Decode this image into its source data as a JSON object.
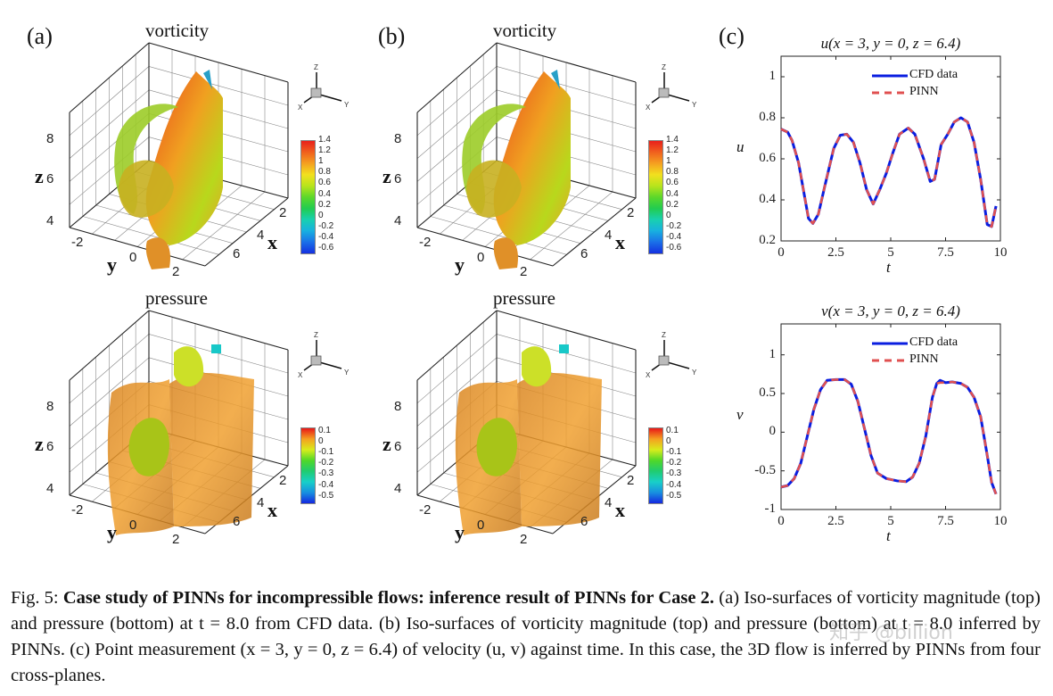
{
  "panels": {
    "a": {
      "label": "(a)",
      "top_title": "vorticity",
      "bottom_title": "pressure"
    },
    "b": {
      "label": "(b)",
      "top_title": "vorticity",
      "bottom_title": "pressure"
    },
    "c": {
      "label": "(c)"
    }
  },
  "axes3d": {
    "z_label": "z",
    "y_label": "y",
    "x_label": "x",
    "z_ticks": [
      "8",
      "6",
      "4"
    ],
    "y_ticks": [
      "-2",
      "0",
      "2"
    ],
    "x_ticks": [
      "2",
      "4",
      "6"
    ],
    "triad": {
      "z": "Z",
      "x": "X",
      "y": "Y"
    }
  },
  "colorbars": {
    "vorticity": {
      "labels": [
        "1.4",
        "1.2",
        "1",
        "0.8",
        "0.6",
        "0.4",
        "0.2",
        "0",
        "-0.2",
        "-0.4",
        "-0.6"
      ],
      "colors": [
        "#e8201c",
        "#f0601e",
        "#f5a020",
        "#f2e01e",
        "#b8e41c",
        "#5cd82a",
        "#22cc50",
        "#18d0b0",
        "#18b0e0",
        "#1a70e8",
        "#1430e0"
      ]
    },
    "pressure": {
      "labels": [
        "0.1",
        "0",
        "-0.1",
        "-0.2",
        "-0.3",
        "-0.4",
        "-0.5"
      ],
      "colors": [
        "#e81818",
        "#f5a020",
        "#d8ec1c",
        "#50d828",
        "#20cc70",
        "#18d0c8",
        "#1890e0",
        "#1428e0"
      ]
    }
  },
  "chart_data": [
    {
      "type": "line",
      "title": "u(x = 3, y = 0, z = 6.4)",
      "xlabel": "t",
      "ylabel": "u",
      "xlim": [
        0,
        10
      ],
      "ylim": [
        0.2,
        1.1
      ],
      "xticks": [
        "0",
        "2.5",
        "5",
        "7.5",
        "10"
      ],
      "yticks": [
        "0.2",
        "0.4",
        "0.6",
        "0.8",
        "1"
      ],
      "legend": "top-right",
      "x": [
        0,
        0.3,
        0.5,
        0.8,
        1.1,
        1.25,
        1.45,
        1.7,
        2.0,
        2.4,
        2.7,
        3.0,
        3.3,
        3.6,
        3.9,
        4.2,
        4.5,
        4.8,
        5.1,
        5.4,
        5.8,
        6.1,
        6.5,
        6.8,
        7.0,
        7.3,
        7.6,
        7.9,
        8.2,
        8.5,
        8.8,
        9.1,
        9.4,
        9.6,
        9.8
      ],
      "series": [
        {
          "name": "CFD data",
          "color": "#0a1ee0",
          "style": "solid",
          "values": [
            0.745,
            0.73,
            0.69,
            0.58,
            0.4,
            0.31,
            0.285,
            0.33,
            0.47,
            0.65,
            0.715,
            0.72,
            0.68,
            0.58,
            0.45,
            0.38,
            0.45,
            0.53,
            0.63,
            0.72,
            0.75,
            0.72,
            0.6,
            0.49,
            0.5,
            0.67,
            0.72,
            0.78,
            0.8,
            0.78,
            0.68,
            0.5,
            0.28,
            0.27,
            0.37
          ]
        },
        {
          "name": "PINN",
          "color": "#e05050",
          "style": "dashed",
          "values": [
            0.745,
            0.73,
            0.69,
            0.58,
            0.4,
            0.31,
            0.285,
            0.33,
            0.47,
            0.65,
            0.715,
            0.72,
            0.68,
            0.58,
            0.45,
            0.38,
            0.45,
            0.53,
            0.63,
            0.72,
            0.75,
            0.72,
            0.6,
            0.49,
            0.5,
            0.67,
            0.72,
            0.78,
            0.8,
            0.78,
            0.68,
            0.5,
            0.28,
            0.27,
            0.37
          ]
        }
      ]
    },
    {
      "type": "line",
      "title": "v(x = 3, y = 0, z = 6.4)",
      "xlabel": "t",
      "ylabel": "v",
      "xlim": [
        0,
        10
      ],
      "ylim": [
        -1,
        1.4
      ],
      "xticks": [
        "0",
        "2.5",
        "5",
        "7.5",
        "10"
      ],
      "yticks": [
        "-1",
        "-0.5",
        "0",
        "0.5",
        "1"
      ],
      "legend": "top-right",
      "x": [
        0,
        0.3,
        0.6,
        0.9,
        1.2,
        1.5,
        1.8,
        2.1,
        2.5,
        2.9,
        3.2,
        3.5,
        3.8,
        4.1,
        4.4,
        4.8,
        5.3,
        5.7,
        6.0,
        6.3,
        6.6,
        6.9,
        7.1,
        7.25,
        7.5,
        7.8,
        8.2,
        8.5,
        8.8,
        9.1,
        9.4,
        9.6,
        9.8
      ],
      "series": [
        {
          "name": "CFD data",
          "color": "#0a1ee0",
          "style": "solid",
          "values": [
            -0.71,
            -0.69,
            -0.6,
            -0.4,
            -0.05,
            0.3,
            0.55,
            0.67,
            0.68,
            0.68,
            0.62,
            0.4,
            0.05,
            -0.3,
            -0.53,
            -0.6,
            -0.63,
            -0.64,
            -0.58,
            -0.4,
            -0.05,
            0.45,
            0.63,
            0.67,
            0.64,
            0.65,
            0.63,
            0.58,
            0.45,
            0.2,
            -0.3,
            -0.65,
            -0.8
          ]
        },
        {
          "name": "PINN",
          "color": "#e05050",
          "style": "dashed",
          "values": [
            -0.71,
            -0.69,
            -0.6,
            -0.4,
            -0.05,
            0.3,
            0.55,
            0.67,
            0.68,
            0.68,
            0.62,
            0.4,
            0.05,
            -0.3,
            -0.53,
            -0.6,
            -0.63,
            -0.64,
            -0.58,
            -0.4,
            -0.05,
            0.45,
            0.63,
            0.64,
            0.64,
            0.65,
            0.63,
            0.58,
            0.45,
            0.2,
            -0.3,
            -0.65,
            -0.8
          ]
        }
      ]
    }
  ],
  "caption": {
    "fig": "Fig. 5:",
    "bold": "Case study of PINNs for incompressible flows: inference result of PINNs for Case 2.",
    "text": "(a) Iso-surfaces of vorticity magnitude (top) and pressure (bottom) at t = 8.0 from CFD data. (b) Iso-surfaces of vorticity magnitude (top) and pressure (bottom) at t = 8.0 inferred by PINNs. (c) Point measurement (x = 3, y = 0, z = 6.4) of velocity (u, v) against time. In this case, the 3D flow is inferred by PINNs from four cross-planes."
  },
  "watermark": "知乎 @billion"
}
